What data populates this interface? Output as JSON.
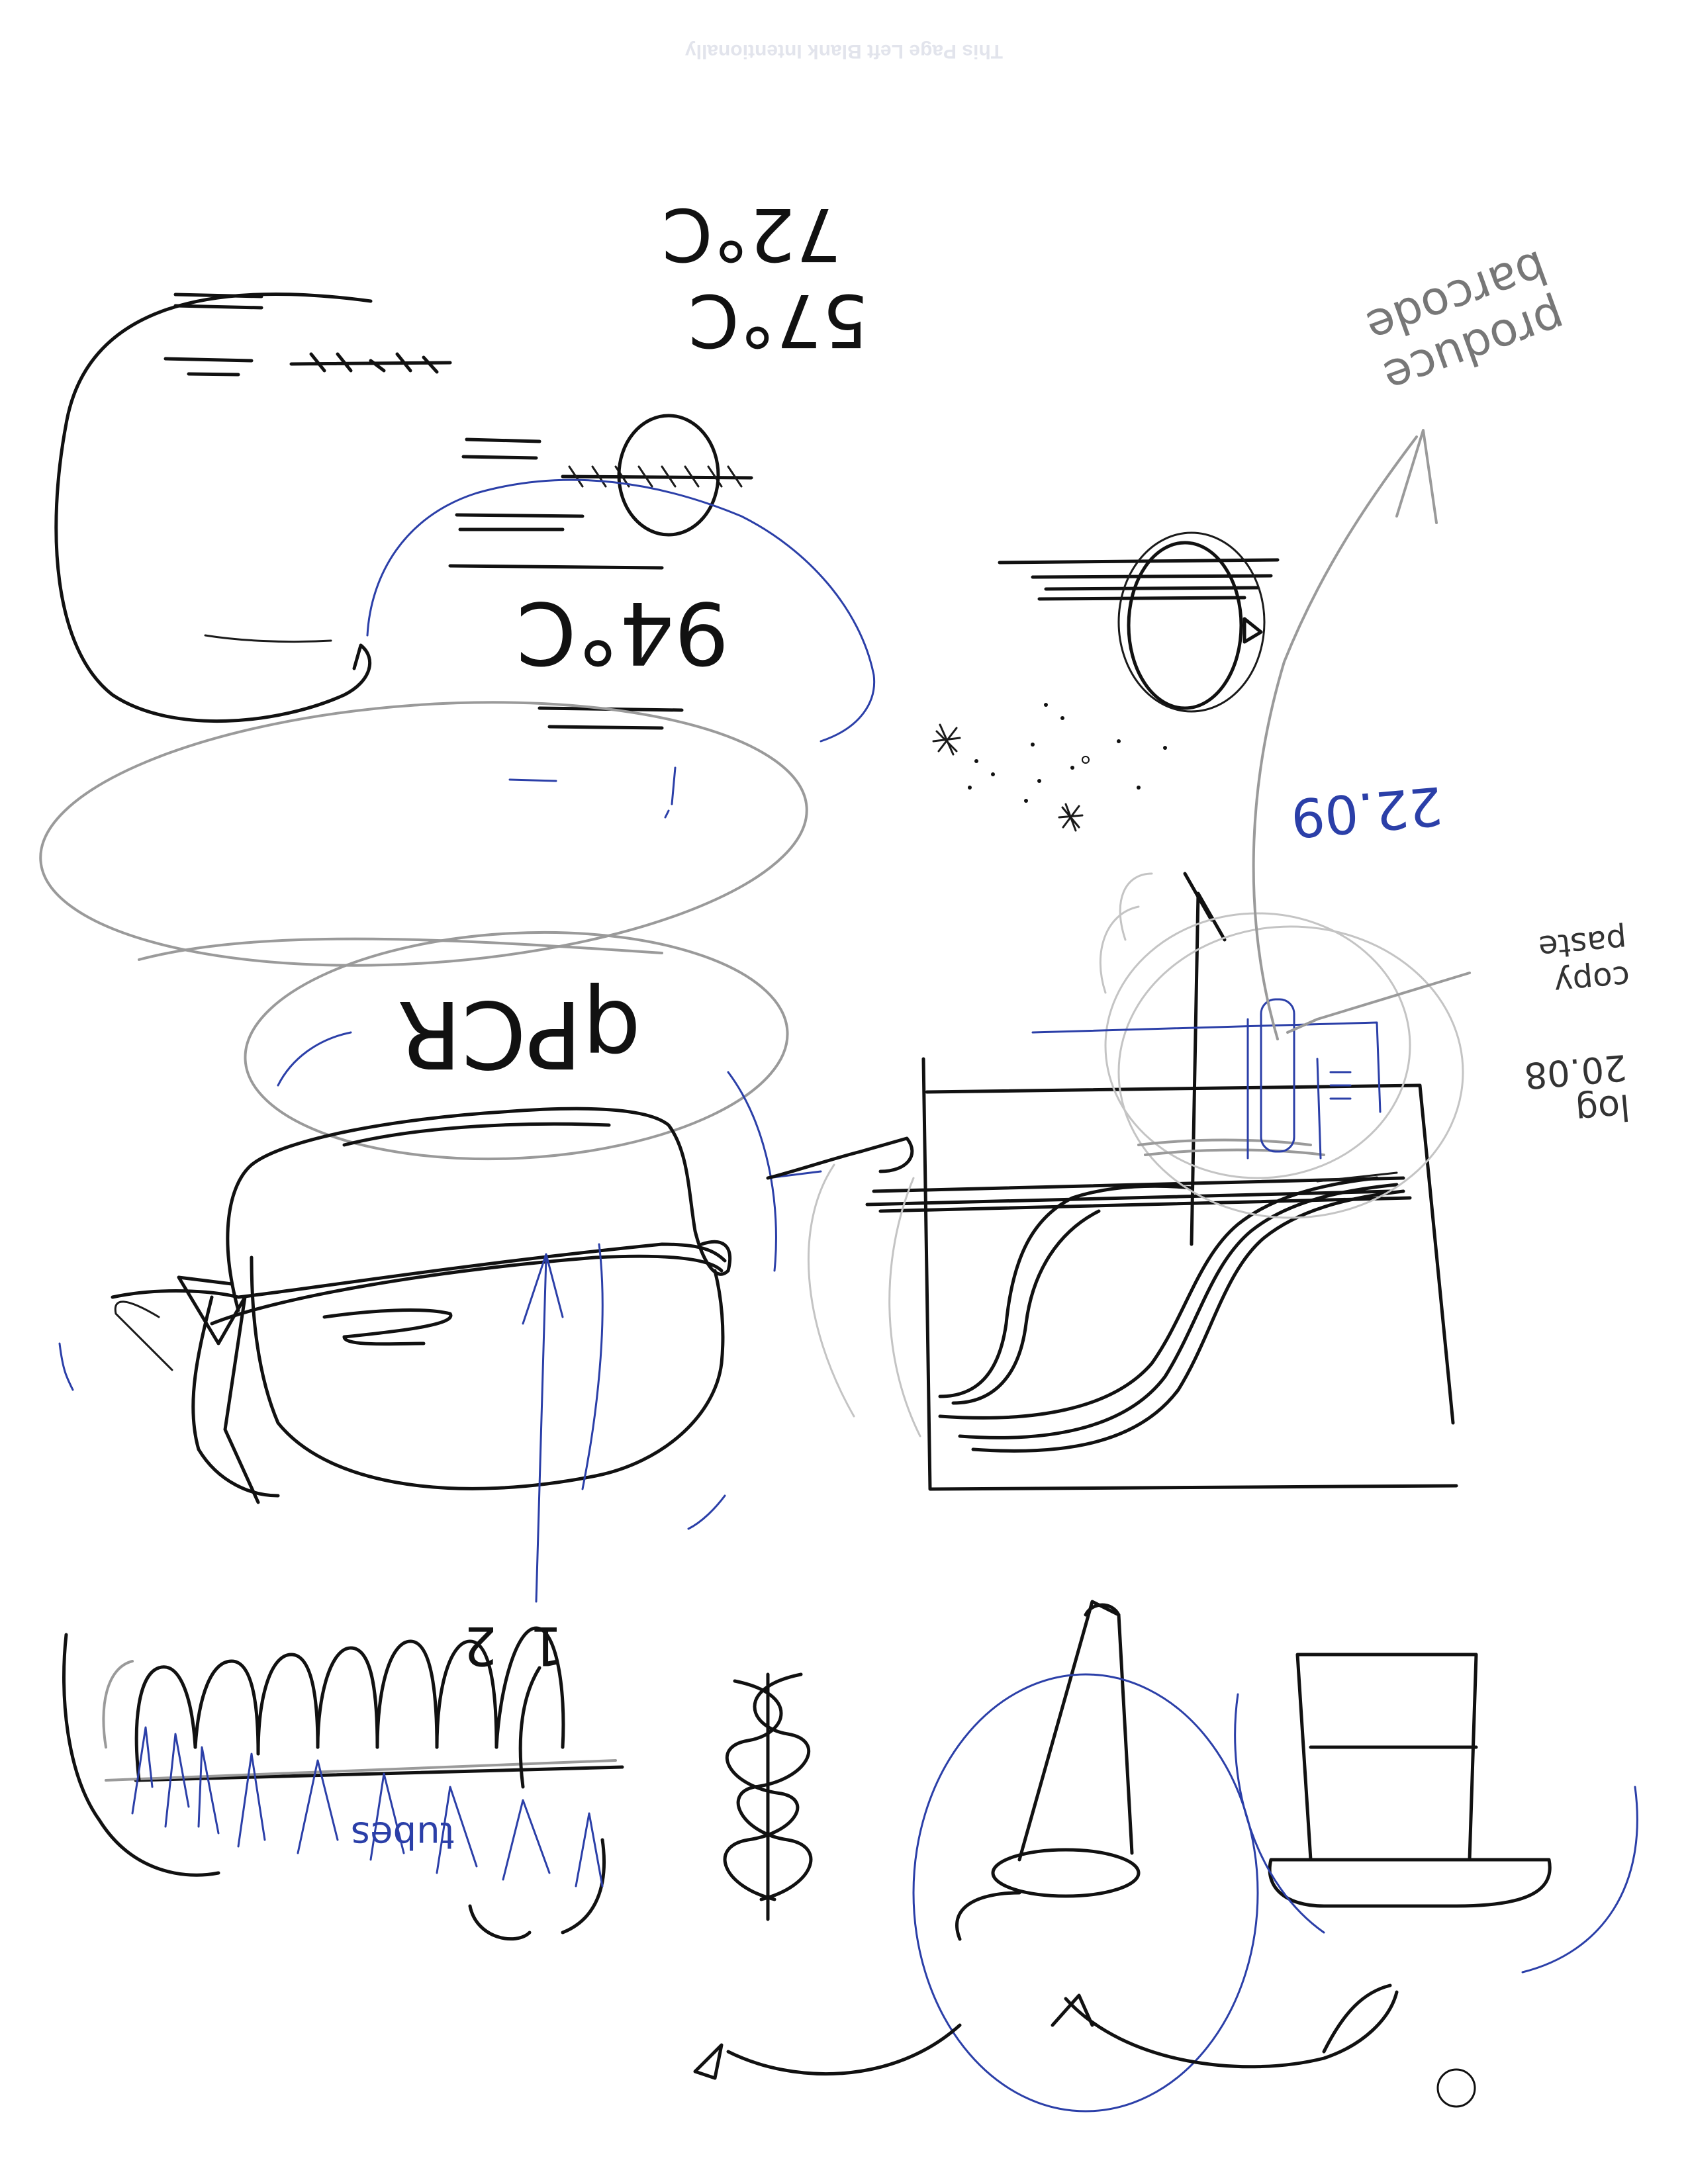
{
  "header": {
    "notice": "This Page Left Blank Intentionally"
  },
  "notes": {
    "temp_57": "57°C",
    "temp_72": "72°C",
    "temp_94": "94°C",
    "qpcr": "qPCR",
    "produce_barcode": "produce barcode",
    "ct_value": "22.09",
    "copy_paste": "copy paste",
    "log_scale": "log 20.08",
    "cycle_one": "1",
    "cycle_two": "2",
    "cuvettes": "tubes"
  },
  "colors": {
    "pen_black": "#111111",
    "pen_blue": "#2b3fa8",
    "pencil_gray": "#9a9a9a"
  }
}
